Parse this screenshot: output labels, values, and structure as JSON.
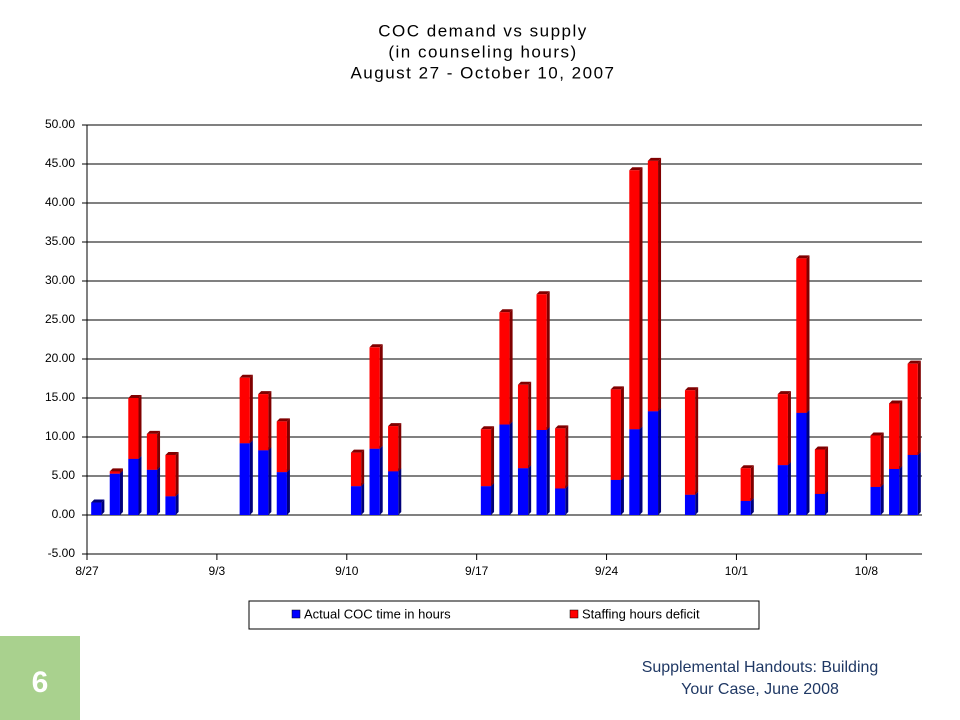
{
  "chart_data": {
    "type": "bar",
    "stacked": true,
    "title": [
      "COC demand vs supply",
      "(in counseling hours)",
      "August 27 - October 10, 2007"
    ],
    "categories": [
      "8/27",
      null,
      null,
      null,
      null,
      null,
      null,
      "9/3",
      null,
      null,
      null,
      null,
      null,
      null,
      "9/10",
      null,
      null,
      null,
      null,
      null,
      null,
      "9/17",
      null,
      null,
      null,
      null,
      null,
      null,
      "9/24",
      null,
      null,
      null,
      null,
      null,
      null,
      "10/1",
      null,
      null,
      null,
      null,
      null,
      null,
      "10/8",
      null,
      null
    ],
    "series": [
      {
        "name": "Actual COC time in hours",
        "color": "#0000ff",
        "values": [
          1.6,
          5.3,
          7.2,
          5.8,
          2.4,
          null,
          null,
          null,
          9.2,
          8.3,
          5.5,
          null,
          null,
          null,
          3.7,
          8.5,
          5.6,
          null,
          null,
          null,
          null,
          3.7,
          11.6,
          6,
          10.9,
          3.4,
          null,
          null,
          4.5,
          11,
          13.3,
          null,
          2.6,
          null,
          null,
          1.8,
          null,
          6.4,
          13.1,
          2.7,
          null,
          null,
          3.6,
          5.9,
          7.7
        ]
      },
      {
        "name": "Staffing hours deficit",
        "color": "#ff0000",
        "values": [
          0,
          0.3,
          7.8,
          4.6,
          5.3,
          null,
          null,
          null,
          8.4,
          7.2,
          6.5,
          null,
          null,
          null,
          4.3,
          13,
          5.8,
          null,
          null,
          null,
          null,
          7.3,
          14.4,
          10.7,
          17.4,
          7.7,
          null,
          null,
          11.6,
          33.2,
          32.1,
          null,
          13.4,
          null,
          null,
          4.2,
          null,
          9.1,
          19.8,
          5.7,
          null,
          null,
          6.6,
          8.4,
          11.7
        ]
      }
    ],
    "ylim": [
      -5,
      50
    ],
    "yticks": [
      {
        "value": -5,
        "label": "-5.00"
      },
      {
        "value": 0,
        "label": "0.00"
      },
      {
        "value": 5,
        "label": "5.00"
      },
      {
        "value": 10,
        "label": "10.00"
      },
      {
        "value": 15,
        "label": "15.00"
      },
      {
        "value": 20,
        "label": "20.00"
      },
      {
        "value": 25,
        "label": "25.00"
      },
      {
        "value": 30,
        "label": "30.00"
      },
      {
        "value": 35,
        "label": "35.00"
      },
      {
        "value": 40,
        "label": "40.00"
      },
      {
        "value": 45,
        "label": "45.00"
      },
      {
        "value": 50,
        "label": "50.00"
      }
    ],
    "grid": true,
    "legend": "bottom"
  },
  "slide": {
    "page_number": "6",
    "footer": [
      "Supplemental Handouts: Building",
      "Your Case, June 2008"
    ]
  }
}
